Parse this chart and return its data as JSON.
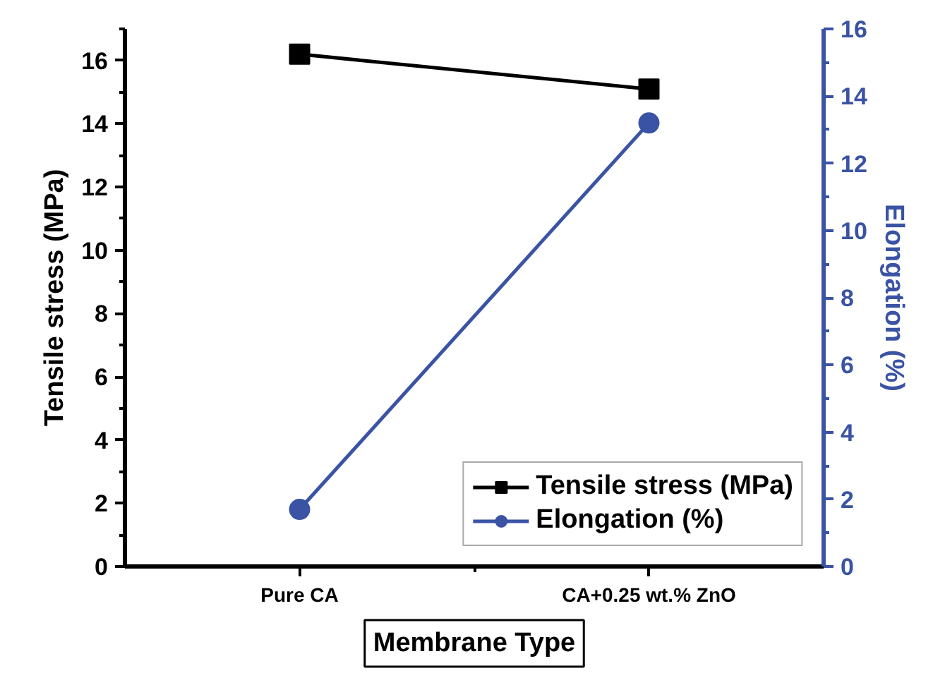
{
  "chart_data": {
    "type": "line",
    "xlabel": "Membrane Type",
    "ylabel": "Tensile stress (MPa)",
    "y2label": "Elongation (%)",
    "categories": [
      "Pure CA",
      "CA+0.25 wt.% ZnO"
    ],
    "series": [
      {
        "name": "Tensile stress (MPa)",
        "color": "#000000",
        "marker": "square",
        "values": [
          16.2,
          15.1
        ]
      },
      {
        "name": "Elongation (%)",
        "color": "#3a53a4",
        "marker": "circle",
        "axis": "y2",
        "values": [
          1.7,
          13.2
        ]
      }
    ],
    "ylim": [
      0,
      17
    ],
    "yticks": [
      0,
      2,
      4,
      6,
      8,
      10,
      12,
      14,
      16
    ],
    "y2lim": [
      0,
      16
    ],
    "y2ticks": [
      0,
      2,
      4,
      6,
      8,
      10,
      12,
      14,
      16
    ],
    "grid": false,
    "legend": "bottom right",
    "line_style": "solid"
  }
}
